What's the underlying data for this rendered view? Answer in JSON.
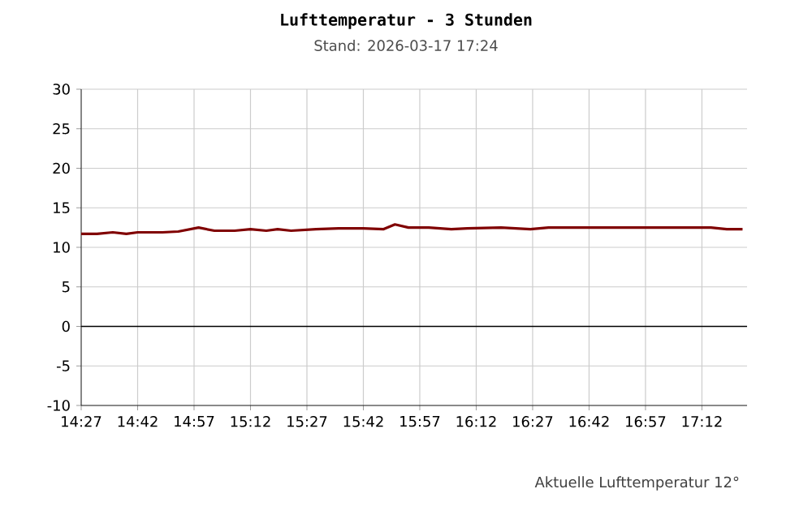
{
  "chart_data": {
    "type": "line",
    "title": "Lufttemperatur - 3 Stunden",
    "subtitle": "Stand: 2026-03-17 17:24",
    "annotations": [
      "Aktuelle Lufttemperatur 12°"
    ],
    "x": [
      14.45,
      14.52,
      14.59,
      14.65,
      14.7,
      14.81,
      14.88,
      14.97,
      15.04,
      15.13,
      15.2,
      15.27,
      15.32,
      15.38,
      15.49,
      15.59,
      15.7,
      15.79,
      15.84,
      15.9,
      15.99,
      16.09,
      16.16,
      16.31,
      16.44,
      16.52,
      16.66,
      16.95,
      17.24,
      17.31,
      17.38
    ],
    "series": [
      {
        "color": "#800000",
        "values": [
          11.7,
          11.7,
          11.9,
          11.7,
          11.9,
          11.9,
          12.0,
          12.5,
          12.1,
          12.1,
          12.3,
          12.1,
          12.3,
          12.1,
          12.3,
          12.4,
          12.4,
          12.3,
          12.9,
          12.5,
          12.5,
          12.3,
          12.4,
          12.5,
          12.3,
          12.5,
          12.5,
          12.5,
          12.5,
          12.3,
          12.3
        ]
      }
    ],
    "xlim": [
      14.45,
      17.4
    ],
    "ylim": [
      -10,
      30
    ],
    "xticks": [
      {
        "value": 14.45,
        "label": "14:27"
      },
      {
        "value": 14.7,
        "label": "14:42"
      },
      {
        "value": 14.95,
        "label": "14:57"
      },
      {
        "value": 15.2,
        "label": "15:12"
      },
      {
        "value": 15.45,
        "label": "15:27"
      },
      {
        "value": 15.7,
        "label": "15:42"
      },
      {
        "value": 15.95,
        "label": "15:57"
      },
      {
        "value": 16.2,
        "label": "16:12"
      },
      {
        "value": 16.45,
        "label": "16:27"
      },
      {
        "value": 16.7,
        "label": "16:42"
      },
      {
        "value": 16.95,
        "label": "16:57"
      },
      {
        "value": 17.2,
        "label": "17:12"
      }
    ],
    "yticks": [
      -10,
      -5,
      0,
      5,
      10,
      15,
      20,
      25,
      30
    ],
    "ref_lines": [
      {
        "axis": "y",
        "value": 0,
        "color": "#000000"
      }
    ],
    "grid": true,
    "marker": "none",
    "line_style": "solid"
  }
}
